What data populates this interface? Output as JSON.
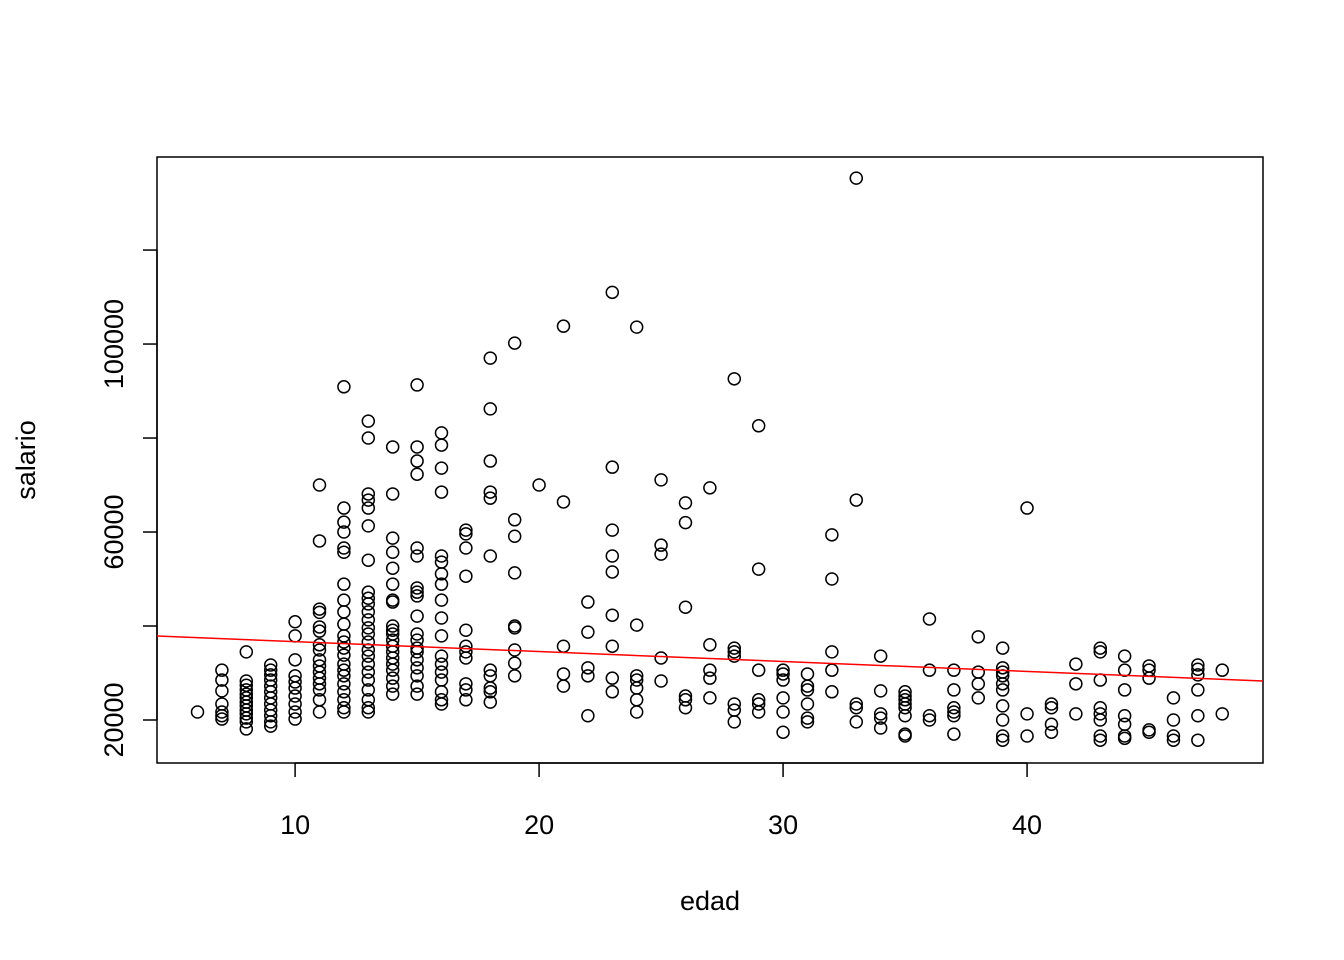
{
  "chart_data": {
    "type": "scatter",
    "xlabel": "edad",
    "ylabel": "salario",
    "xlim": [
      4.34,
      49.67
    ],
    "ylim": [
      10850,
      139800
    ],
    "xticks": [
      10,
      20,
      30,
      40
    ],
    "yticks": [
      20000,
      {
        "value": 40000,
        "label": null
      },
      60000,
      {
        "value": 80000,
        "label": null
      },
      100000,
      {
        "value": 120000,
        "label": null
      }
    ],
    "color": "#000000",
    "fit": {
      "color": "#ff0000",
      "x": [
        4.34,
        49.67
      ],
      "y": [
        37870,
        28300
      ]
    },
    "x": [
      6,
      7,
      7,
      7,
      7,
      7,
      7,
      7,
      8,
      8,
      8,
      8,
      8,
      8,
      8,
      8,
      8,
      8,
      8,
      8,
      8,
      9,
      9,
      9,
      9,
      9,
      9,
      9,
      9,
      9,
      9,
      9,
      9,
      10,
      10,
      10,
      10,
      10,
      10,
      10,
      10,
      10,
      10,
      11,
      11,
      11,
      11,
      11,
      11,
      11,
      11,
      11,
      11,
      11,
      11,
      11,
      11,
      11,
      11,
      12,
      12,
      12,
      12,
      12,
      12,
      12,
      12,
      12,
      12,
      12,
      12,
      12,
      12,
      12,
      12,
      12,
      12,
      12,
      12,
      12,
      12,
      13,
      13,
      13,
      13,
      13,
      13,
      13,
      13,
      13,
      13,
      13,
      13,
      13,
      13,
      13,
      13,
      13,
      13,
      13,
      13,
      13,
      13,
      13,
      13,
      14,
      14,
      14,
      14,
      14,
      14,
      14,
      14,
      14,
      14,
      14,
      14,
      14,
      14,
      14,
      14,
      14,
      14,
      14,
      14,
      15,
      15,
      15,
      15,
      15,
      15,
      15,
      15,
      15,
      15,
      15,
      15,
      15,
      15,
      15,
      15,
      15,
      15,
      15,
      16,
      16,
      16,
      16,
      16,
      16,
      16,
      16,
      16,
      16,
      16,
      16,
      16,
      16,
      16,
      16,
      16,
      16,
      17,
      17,
      17,
      17,
      17,
      17,
      17,
      17,
      17,
      17,
      17,
      18,
      18,
      18,
      18,
      18,
      18,
      18,
      18,
      18,
      18,
      18,
      19,
      19,
      19,
      19,
      19,
      19,
      19,
      19,
      19,
      20,
      21,
      21,
      21,
      21,
      21,
      22,
      22,
      22,
      22,
      22,
      23,
      23,
      23,
      23,
      23,
      23,
      23,
      23,
      23,
      24,
      24,
      24,
      24,
      24,
      24,
      24,
      25,
      25,
      25,
      25,
      25,
      26,
      26,
      26,
      26,
      26,
      26,
      27,
      27,
      27,
      27,
      27,
      28,
      28,
      28,
      28,
      28,
      28,
      28,
      29,
      29,
      29,
      29,
      29,
      29,
      30,
      30,
      30,
      30,
      30,
      30,
      31,
      31,
      31,
      31,
      31,
      31,
      32,
      32,
      32,
      32,
      32,
      33,
      33,
      33,
      33,
      33,
      34,
      34,
      34,
      34,
      34,
      35,
      35,
      35,
      35,
      35,
      35,
      35,
      35,
      36,
      36,
      36,
      36,
      37,
      37,
      37,
      37,
      37,
      37,
      38,
      38,
      38,
      38,
      39,
      39,
      39,
      39,
      39,
      39,
      39,
      39,
      39,
      39,
      40,
      40,
      40,
      41,
      41,
      41,
      41,
      42,
      42,
      42,
      43,
      43,
      43,
      43,
      43,
      43,
      43,
      43,
      44,
      44,
      44,
      44,
      44,
      44,
      44,
      45,
      45,
      45,
      45,
      45,
      46,
      46,
      46,
      46,
      47,
      47,
      47,
      47,
      47,
      47,
      48,
      48
    ],
    "y": [
      21700,
      30600,
      28500,
      26200,
      23400,
      21700,
      20900,
      20200,
      34500,
      28300,
      27400,
      26400,
      25500,
      24700,
      23800,
      23000,
      22100,
      21300,
      20400,
      19600,
      18100,
      31700,
      30600,
      29600,
      28500,
      27200,
      26000,
      24700,
      23400,
      22100,
      20900,
      19600,
      18700,
      40900,
      37900,
      32800,
      29400,
      28100,
      26800,
      25100,
      23400,
      21700,
      20200,
      70000,
      58100,
      43600,
      42900,
      39800,
      38900,
      36000,
      34900,
      32800,
      31500,
      30200,
      28900,
      27700,
      26400,
      24300,
      21700,
      90900,
      65100,
      62100,
      60000,
      56600,
      55700,
      48900,
      45500,
      43000,
      40400,
      37900,
      36600,
      35300,
      33800,
      31900,
      30600,
      29400,
      27700,
      26000,
      24300,
      22600,
      21700,
      83600,
      80000,
      68100,
      66800,
      65100,
      61300,
      54000,
      47200,
      45900,
      44700,
      43000,
      41300,
      39600,
      38300,
      36600,
      34900,
      33600,
      31900,
      30200,
      28500,
      26400,
      24300,
      22600,
      21700,
      78100,
      68100,
      58700,
      55700,
      52300,
      48900,
      45500,
      45100,
      40000,
      39100,
      38300,
      37000,
      35700,
      34500,
      33200,
      31900,
      30600,
      28900,
      27200,
      25500,
      91300,
      78100,
      75100,
      72300,
      56600,
      54900,
      48100,
      47200,
      46400,
      42100,
      38300,
      37000,
      35300,
      34500,
      32800,
      31100,
      29400,
      27200,
      25500,
      81100,
      78500,
      73600,
      68500,
      54900,
      53600,
      51100,
      48900,
      45500,
      41700,
      37900,
      33600,
      31900,
      30200,
      28500,
      26000,
      24300,
      23400,
      60400,
      59600,
      56600,
      50600,
      39100,
      35700,
      34500,
      33200,
      27700,
      26400,
      24300,
      97000,
      86200,
      75100,
      68500,
      67200,
      54900,
      30600,
      29400,
      26800,
      26000,
      23800,
      100200,
      62600,
      59100,
      51300,
      40000,
      39600,
      34900,
      32100,
      29400,
      70000,
      103800,
      66400,
      35700,
      29800,
      27200,
      45100,
      38700,
      31100,
      29400,
      20900,
      111000,
      73800,
      60400,
      54900,
      51500,
      42300,
      35700,
      28900,
      26000,
      103600,
      40200,
      29400,
      28500,
      26800,
      24300,
      21700,
      71100,
      57200,
      55300,
      33200,
      28300,
      66200,
      62000,
      44000,
      25100,
      24300,
      22600,
      69400,
      36000,
      30600,
      28900,
      24700,
      92600,
      35300,
      34500,
      33600,
      23400,
      22100,
      19600,
      82600,
      52100,
      30600,
      24300,
      23400,
      21700,
      30600,
      29800,
      28500,
      24700,
      21700,
      17400,
      29800,
      27200,
      26400,
      23400,
      20400,
      19600,
      59400,
      50000,
      34500,
      30600,
      26000,
      135300,
      66800,
      23400,
      22600,
      19600,
      33600,
      26200,
      21300,
      20400,
      18300,
      26000,
      25100,
      24300,
      23400,
      22600,
      20900,
      17000,
      16600,
      41500,
      30600,
      20900,
      20000,
      30600,
      26400,
      22600,
      21700,
      20900,
      17000,
      37700,
      30200,
      27700,
      24700,
      35300,
      31100,
      30200,
      29400,
      27700,
      26400,
      23000,
      20000,
      16600,
      15700,
      65100,
      21300,
      16600,
      23400,
      22600,
      19100,
      17400,
      31900,
      27700,
      21300,
      35300,
      34500,
      28500,
      22600,
      21300,
      20000,
      16600,
      15700,
      33600,
      30600,
      26400,
      20900,
      19100,
      16600,
      16100,
      31500,
      30600,
      28900,
      17900,
      17400,
      24700,
      20000,
      16600,
      15700,
      31700,
      30800,
      29600,
      26400,
      20900,
      15700,
      30600,
      21300
    ]
  }
}
